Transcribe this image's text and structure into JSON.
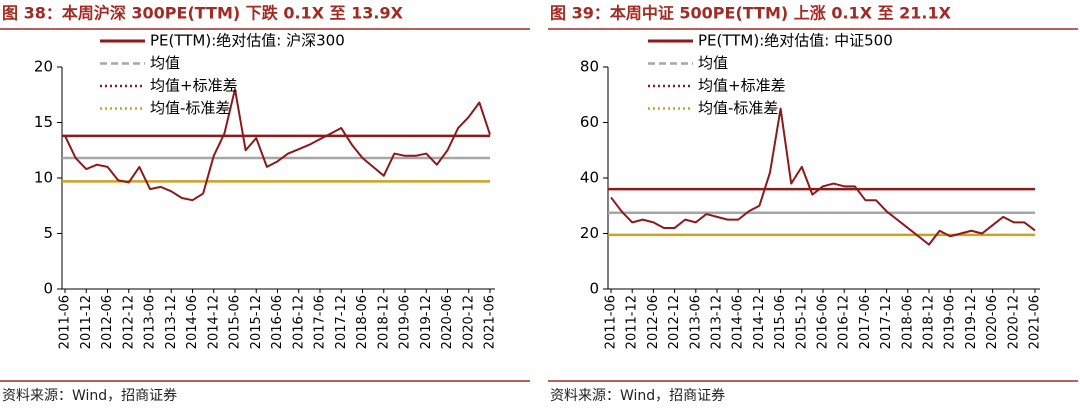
{
  "chart_data": [
    {
      "type": "line",
      "title": "图 38：本周沪深 300PE(TTM)  下跌 0.1X 至 13.9X",
      "source": "资料来源：Wind，招商证券",
      "x": [
        "2011-06",
        "2011-09",
        "2011-12",
        "2012-03",
        "2012-06",
        "2012-09",
        "2012-12",
        "2013-03",
        "2013-06",
        "2013-09",
        "2013-12",
        "2014-03",
        "2014-06",
        "2014-09",
        "2014-12",
        "2015-03",
        "2015-06",
        "2015-09",
        "2015-12",
        "2016-03",
        "2016-06",
        "2016-09",
        "2016-12",
        "2017-03",
        "2017-06",
        "2017-09",
        "2017-12",
        "2018-03",
        "2018-06",
        "2018-09",
        "2018-12",
        "2019-03",
        "2019-06",
        "2019-09",
        "2019-12",
        "2020-03",
        "2020-06",
        "2020-09",
        "2020-12",
        "2021-03",
        "2021-06"
      ],
      "series": [
        {
          "name": "PE(TTM):绝对估值: 沪深300",
          "color": "#8b1a1a",
          "values": [
            13.8,
            11.8,
            10.8,
            11.2,
            11.0,
            9.8,
            9.6,
            11.0,
            9.0,
            9.2,
            8.8,
            8.2,
            8.0,
            8.6,
            12.0,
            14.0,
            18.0,
            12.5,
            13.6,
            11.0,
            11.5,
            12.2,
            12.6,
            13.0,
            13.5,
            14.0,
            14.5,
            13.0,
            11.8,
            11.0,
            10.2,
            12.2,
            12.0,
            12.0,
            12.2,
            11.2,
            12.5,
            14.5,
            15.5,
            16.8,
            13.9
          ]
        }
      ],
      "reference_lines": [
        {
          "name": "均值",
          "value": 11.8,
          "color": "#a6a6a6",
          "legend_style": "dashed"
        },
        {
          "name": "均值+标准差",
          "value": 13.8,
          "color": "#8b1a1a",
          "legend_style": "dotted"
        },
        {
          "name": "均值-标准差",
          "value": 9.7,
          "color": "#c9a227",
          "legend_style": "dotted"
        }
      ],
      "xlim": [
        "2011-06",
        "2021-06"
      ],
      "xticks": [
        "2011-06",
        "2011-12",
        "2012-06",
        "2012-12",
        "2013-06",
        "2013-12",
        "2014-06",
        "2014-12",
        "2015-06",
        "2015-12",
        "2016-06",
        "2016-12",
        "2017-06",
        "2017-12",
        "2018-06",
        "2018-12",
        "2019-06",
        "2019-12",
        "2020-06",
        "2020-12",
        "2021-06"
      ],
      "ylim": [
        0,
        20
      ],
      "yticks": [
        0,
        5,
        10,
        15,
        20
      ]
    },
    {
      "type": "line",
      "title": "图 39：本周中证 500PE(TTM)  上涨 0.1X 至 21.1X",
      "source": "资料来源：Wind，招商证券",
      "x": [
        "2011-06",
        "2011-09",
        "2011-12",
        "2012-03",
        "2012-06",
        "2012-09",
        "2012-12",
        "2013-03",
        "2013-06",
        "2013-09",
        "2013-12",
        "2014-03",
        "2014-06",
        "2014-09",
        "2014-12",
        "2015-03",
        "2015-06",
        "2015-09",
        "2015-12",
        "2016-03",
        "2016-06",
        "2016-09",
        "2016-12",
        "2017-03",
        "2017-06",
        "2017-09",
        "2017-12",
        "2018-03",
        "2018-06",
        "2018-09",
        "2018-12",
        "2019-03",
        "2019-06",
        "2019-09",
        "2019-12",
        "2020-03",
        "2020-06",
        "2020-09",
        "2020-12",
        "2021-03",
        "2021-06"
      ],
      "series": [
        {
          "name": "PE(TTM):绝对估值: 中证500",
          "color": "#8b1a1a",
          "values": [
            33,
            28,
            24,
            25,
            24,
            22,
            22,
            25,
            24,
            27,
            26,
            25,
            25,
            28,
            30,
            42,
            65,
            38,
            44,
            34,
            37,
            38,
            37,
            37,
            32,
            32,
            28,
            25,
            22,
            19,
            16,
            21,
            19,
            20,
            21,
            20,
            23,
            26,
            24,
            24,
            21.1
          ]
        }
      ],
      "reference_lines": [
        {
          "name": "均值",
          "value": 27.5,
          "color": "#a6a6a6",
          "legend_style": "dashed"
        },
        {
          "name": "均值+标准差",
          "value": 36,
          "color": "#8b1a1a",
          "legend_style": "dotted"
        },
        {
          "name": "均值-标准差",
          "value": 19.5,
          "color": "#c9a227",
          "legend_style": "dotted"
        }
      ],
      "xlim": [
        "2011-06",
        "2021-06"
      ],
      "xticks": [
        "2011-06",
        "2011-12",
        "2012-06",
        "2012-12",
        "2013-06",
        "2013-12",
        "2014-06",
        "2014-12",
        "2015-06",
        "2015-12",
        "2016-06",
        "2016-12",
        "2017-06",
        "2017-12",
        "2018-06",
        "2018-12",
        "2019-06",
        "2019-12",
        "2020-06",
        "2020-12",
        "2021-06"
      ],
      "ylim": [
        0,
        80
      ],
      "yticks": [
        0,
        20,
        40,
        60,
        80
      ]
    }
  ]
}
